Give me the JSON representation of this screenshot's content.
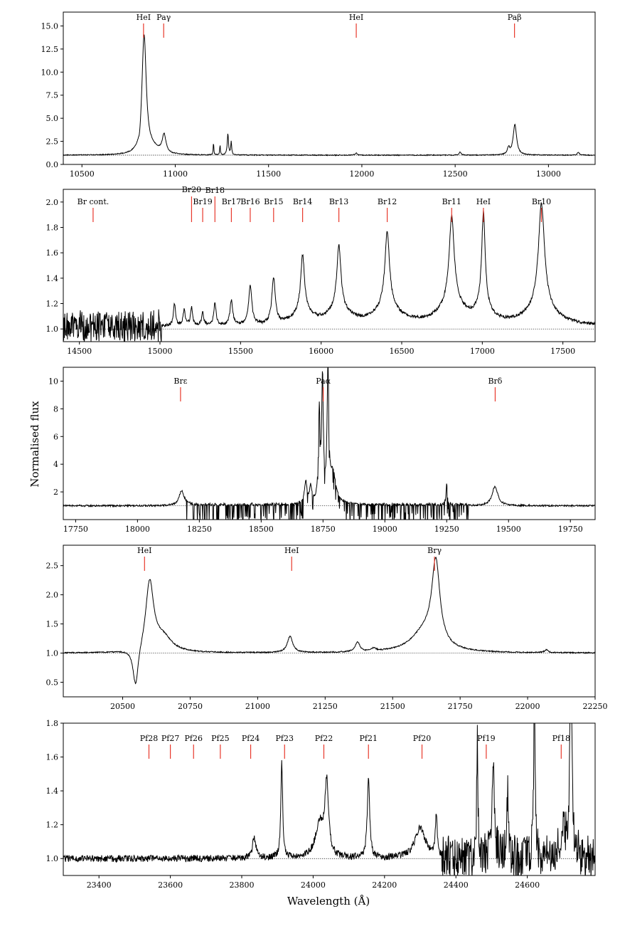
{
  "figure": {
    "ylabel": "Normalised flux",
    "xlabel": "Wavelength (Å)"
  },
  "colors": {
    "line": "#000000",
    "marker": "#e8382b",
    "reference": "#000000"
  },
  "chart_data": [
    {
      "type": "line",
      "xlim": [
        10400,
        13250
      ],
      "ylim": [
        0,
        16.5
      ],
      "xticks": [
        10500,
        11000,
        11500,
        12000,
        12500,
        13000
      ],
      "yticks": [
        0.0,
        2.5,
        5.0,
        7.5,
        10.0,
        12.5,
        15.0
      ],
      "xtick_labels": [
        "10500",
        "11000",
        "11500",
        "12000",
        "12500",
        "13000"
      ],
      "ytick_labels": [
        "0.0",
        "2.5",
        "5.0",
        "7.5",
        "10.0",
        "12.5",
        "15.0"
      ],
      "reference_y": 1.0,
      "lines": [
        {
          "label": "HeI",
          "x": 10830
        },
        {
          "label": "Paγ",
          "x": 10938
        },
        {
          "label": "HeI",
          "x": 11970
        },
        {
          "label": "Paβ",
          "x": 12818
        }
      ],
      "continuum": 1.0,
      "noise": 0.05,
      "features": [
        {
          "x": 10833,
          "a": 12.9,
          "w": 14
        },
        {
          "x": 10940,
          "a": 2.0,
          "w": 12
        },
        {
          "x": 10810,
          "a": -0.9,
          "w": 8
        },
        {
          "x": 10880,
          "a": 0.6,
          "w": 40
        },
        {
          "x": 11205,
          "a": 1.4,
          "w": 2
        },
        {
          "x": 11240,
          "a": 1.1,
          "w": 2
        },
        {
          "x": 11282,
          "a": 2.3,
          "w": 4
        },
        {
          "x": 11300,
          "a": 1.4,
          "w": 3
        },
        {
          "x": 11970,
          "a": 0.25,
          "w": 6
        },
        {
          "x": 12527,
          "a": 0.35,
          "w": 6
        },
        {
          "x": 12786,
          "a": 0.7,
          "w": 8
        },
        {
          "x": 12820,
          "a": 3.3,
          "w": 11
        },
        {
          "x": 13160,
          "a": 0.35,
          "w": 6
        }
      ]
    },
    {
      "type": "line",
      "xlim": [
        14400,
        17700
      ],
      "ylim": [
        0.9,
        2.1
      ],
      "xticks": [
        14500,
        15000,
        15500,
        16000,
        16500,
        17000,
        17500
      ],
      "yticks": [
        1.0,
        1.2,
        1.4,
        1.6,
        1.8,
        2.0
      ],
      "xtick_labels": [
        "14500",
        "15000",
        "15500",
        "16000",
        "16500",
        "17000",
        "17500"
      ],
      "ytick_labels": [
        "1.0",
        "1.2",
        "1.4",
        "1.6",
        "1.8",
        "2.0"
      ],
      "reference_y": 1.0,
      "lines": [
        {
          "label": "Br cont.",
          "x": 14585
        },
        {
          "label": "Br20",
          "x": 15196
        },
        {
          "label": "Br19",
          "x": 15265
        },
        {
          "label": "Br18",
          "x": 15341
        },
        {
          "label": "Br17",
          "x": 15443
        },
        {
          "label": "Br16",
          "x": 15560
        },
        {
          "label": "Br15",
          "x": 15705
        },
        {
          "label": "Br14",
          "x": 15885
        },
        {
          "label": "Br13",
          "x": 16110
        },
        {
          "label": "Br12",
          "x": 16410
        },
        {
          "label": "Br11",
          "x": 16810
        },
        {
          "label": "HeI",
          "x": 17007
        },
        {
          "label": "Br10",
          "x": 17367
        }
      ],
      "continuum": 1.02,
      "noise": 0.012,
      "features": [
        {
          "x": 15090,
          "a": 0.17,
          "w": 8
        },
        {
          "x": 15150,
          "a": 0.12,
          "w": 8
        },
        {
          "x": 15196,
          "a": 0.14,
          "w": 8
        },
        {
          "x": 15265,
          "a": 0.1,
          "w": 8
        },
        {
          "x": 15341,
          "a": 0.17,
          "w": 9
        },
        {
          "x": 15443,
          "a": 0.2,
          "w": 10
        },
        {
          "x": 15560,
          "a": 0.3,
          "w": 12
        },
        {
          "x": 15705,
          "a": 0.36,
          "w": 13
        },
        {
          "x": 15885,
          "a": 0.44,
          "w": 14
        },
        {
          "x": 16110,
          "a": 0.49,
          "w": 15
        },
        {
          "x": 16410,
          "a": 0.58,
          "w": 17
        },
        {
          "x": 16810,
          "a": 0.68,
          "w": 19
        },
        {
          "x": 17007,
          "a": 0.75,
          "w": 13
        },
        {
          "x": 17367,
          "a": 0.8,
          "w": 22
        },
        {
          "x": 15885,
          "a": 0.1,
          "w": 70
        },
        {
          "x": 16110,
          "a": 0.12,
          "w": 80
        },
        {
          "x": 16410,
          "a": 0.14,
          "w": 90
        },
        {
          "x": 16810,
          "a": 0.16,
          "w": 95
        },
        {
          "x": 17007,
          "a": 0.1,
          "w": 60
        },
        {
          "x": 17367,
          "a": 0.16,
          "w": 100
        }
      ],
      "noisy_region": [
        14400,
        15010,
        0.12
      ]
    },
    {
      "type": "line",
      "xlim": [
        17700,
        19850
      ],
      "ylim": [
        0,
        11
      ],
      "xticks": [
        17750,
        18000,
        18250,
        18500,
        18750,
        19000,
        19250,
        19500,
        19750
      ],
      "yticks": [
        2,
        4,
        6,
        8,
        10
      ],
      "xtick_labels": [
        "17750",
        "18000",
        "18250",
        "18500",
        "18750",
        "19000",
        "19250",
        "19500",
        "19750"
      ],
      "ytick_labels": [
        "2",
        "4",
        "6",
        "8",
        "10"
      ],
      "reference_y": 1.0,
      "lines": [
        {
          "label": "Brε",
          "x": 18174
        },
        {
          "label": "Paα",
          "x": 18751
        },
        {
          "label": "Brδ",
          "x": 19446
        }
      ],
      "continuum": 1.0,
      "noise": 0.06,
      "features": [
        {
          "x": 18178,
          "a": 1.1,
          "w": 12
        },
        {
          "x": 18680,
          "a": 1.6,
          "w": 6
        },
        {
          "x": 18700,
          "a": 1.2,
          "w": 5
        },
        {
          "x": 18735,
          "a": 6.3,
          "w": 4
        },
        {
          "x": 18748,
          "a": 8.7,
          "w": 4
        },
        {
          "x": 18770,
          "a": 9.3,
          "w": 4
        },
        {
          "x": 18790,
          "a": 2.2,
          "w": 14
        },
        {
          "x": 19250,
          "a": 1.5,
          "w": 3
        },
        {
          "x": 19445,
          "a": 1.4,
          "w": 14
        }
      ],
      "absorption_region": [
        18190,
        19340,
        1.0
      ]
    },
    {
      "type": "line",
      "xlim": [
        20280,
        22250
      ],
      "ylim": [
        0.25,
        2.85
      ],
      "xticks": [
        20500,
        20750,
        21000,
        21250,
        21500,
        21750,
        22000,
        22250
      ],
      "yticks": [
        0.5,
        1.0,
        1.5,
        2.0,
        2.5
      ],
      "xtick_labels": [
        "20500",
        "20750",
        "21000",
        "21250",
        "21500",
        "21750",
        "22000",
        "22250"
      ],
      "ytick_labels": [
        "0.5",
        "1.0",
        "1.5",
        "2.0",
        "2.5"
      ],
      "reference_y": 1.0,
      "lines": [
        {
          "label": "HeI",
          "x": 20581
        },
        {
          "label": "HeI",
          "x": 21126
        },
        {
          "label": "Brγ",
          "x": 21655
        }
      ],
      "continuum": 1.0,
      "noise": 0.01,
      "features": [
        {
          "x": 20548,
          "a": -0.68,
          "w": 12
        },
        {
          "x": 20600,
          "a": 1.2,
          "w": 18
        },
        {
          "x": 20650,
          "a": 0.25,
          "w": 40
        },
        {
          "x": 21120,
          "a": 0.28,
          "w": 12
        },
        {
          "x": 21370,
          "a": 0.17,
          "w": 10
        },
        {
          "x": 21430,
          "a": 0.05,
          "w": 10
        },
        {
          "x": 21660,
          "a": 1.4,
          "w": 18
        },
        {
          "x": 21620,
          "a": 0.35,
          "w": 60
        },
        {
          "x": 22070,
          "a": 0.05,
          "w": 8
        }
      ]
    },
    {
      "type": "line",
      "xlim": [
        23300,
        24790
      ],
      "ylim": [
        0.9,
        1.8
      ],
      "xticks": [
        23400,
        23600,
        23800,
        24000,
        24200,
        24400,
        24600
      ],
      "yticks": [
        1.0,
        1.2,
        1.4,
        1.6,
        1.8
      ],
      "xtick_labels": [
        "23400",
        "23600",
        "23800",
        "24000",
        "24200",
        "24400",
        "24600"
      ],
      "ytick_labels": [
        "1.0",
        "1.2",
        "1.4",
        "1.6",
        "1.8"
      ],
      "reference_y": 1.0,
      "lines": [
        {
          "label": "Pf28",
          "x": 23540
        },
        {
          "label": "Pf27",
          "x": 23600
        },
        {
          "label": "Pf26",
          "x": 23665
        },
        {
          "label": "Pf25",
          "x": 23740
        },
        {
          "label": "Pf24",
          "x": 23825
        },
        {
          "label": "Pf23",
          "x": 23920
        },
        {
          "label": "Pf22",
          "x": 24030
        },
        {
          "label": "Pf21",
          "x": 24155
        },
        {
          "label": "Pf20",
          "x": 24305
        },
        {
          "label": "Pf19",
          "x": 24485
        },
        {
          "label": "Pf18",
          "x": 24695
        }
      ],
      "continuum": 1.0,
      "noise": 0.02,
      "features": [
        {
          "x": 23835,
          "a": 0.12,
          "w": 6
        },
        {
          "x": 23912,
          "a": 0.58,
          "w": 3
        },
        {
          "x": 24038,
          "a": 0.42,
          "w": 6
        },
        {
          "x": 24018,
          "a": 0.2,
          "w": 14
        },
        {
          "x": 24155,
          "a": 0.48,
          "w": 4
        },
        {
          "x": 24300,
          "a": 0.18,
          "w": 18
        },
        {
          "x": 24345,
          "a": 0.25,
          "w": 3
        },
        {
          "x": 24460,
          "a": 0.75,
          "w": 2
        },
        {
          "x": 24505,
          "a": 0.55,
          "w": 4
        },
        {
          "x": 24545,
          "a": 0.35,
          "w": 3
        },
        {
          "x": 24620,
          "a": 1.2,
          "w": 2
        },
        {
          "x": 24700,
          "a": 0.2,
          "w": 8
        },
        {
          "x": 24722,
          "a": 1.4,
          "w": 3
        }
      ],
      "noisy_region": [
        24360,
        24790,
        0.12
      ]
    }
  ]
}
